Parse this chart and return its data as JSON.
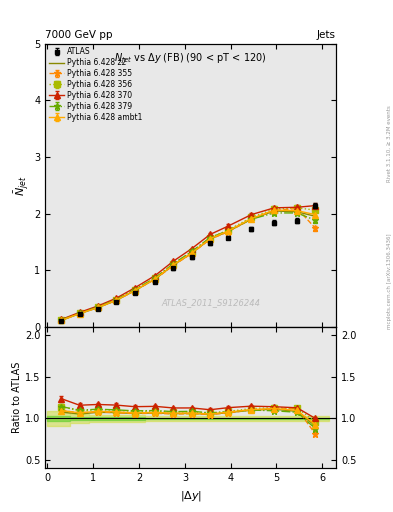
{
  "title_top": "7000 GeV pp",
  "title_right_top": "Jets",
  "plot_title": "N_{jet} vs \\Delta y (FB) (90 < pT < 120)",
  "right_label": "Rivet 3.1.10, ≥ 3.2M events",
  "right_label2": "mcplots.cern.ch [arXiv:1306.3436]",
  "watermark": "ATLAS_2011_S9126244",
  "xlabel": "|\\Delta y|",
  "ylabel": "\\bar{N}_{jet}",
  "ylabel_ratio": "Ratio to ATLAS",
  "xlim": [
    -0.05,
    6.3
  ],
  "ylim_main": [
    0.0,
    5.0
  ],
  "ylim_ratio": [
    0.4,
    2.1
  ],
  "atlas_x": [
    0.3,
    0.7,
    1.1,
    1.5,
    1.9,
    2.35,
    2.75,
    3.15,
    3.55,
    3.95,
    4.45,
    4.95,
    5.45,
    5.85
  ],
  "atlas_y": [
    0.105,
    0.22,
    0.315,
    0.435,
    0.6,
    0.79,
    1.03,
    1.225,
    1.475,
    1.575,
    1.725,
    1.84,
    1.87,
    2.14
  ],
  "atlas_yerr": [
    0.006,
    0.008,
    0.01,
    0.012,
    0.015,
    0.018,
    0.022,
    0.026,
    0.03,
    0.033,
    0.037,
    0.041,
    0.044,
    0.048
  ],
  "series": [
    {
      "label": "Pythia 6.428 355",
      "color": "#ff8800",
      "linestyle": "--",
      "marker": "*",
      "markersize": 5,
      "x": [
        0.3,
        0.7,
        1.1,
        1.5,
        1.9,
        2.35,
        2.75,
        3.15,
        3.55,
        3.95,
        4.45,
        4.95,
        5.45,
        5.85
      ],
      "y": [
        0.115,
        0.235,
        0.34,
        0.465,
        0.635,
        0.84,
        1.085,
        1.295,
        1.545,
        1.68,
        1.9,
        2.05,
        2.09,
        1.74
      ],
      "yerr": [
        0.003,
        0.005,
        0.007,
        0.009,
        0.011,
        0.013,
        0.016,
        0.019,
        0.023,
        0.026,
        0.03,
        0.034,
        0.038,
        0.042
      ]
    },
    {
      "label": "Pythia 6.428 356",
      "color": "#aabb00",
      "linestyle": ":",
      "marker": "s",
      "markersize": 4,
      "x": [
        0.3,
        0.7,
        1.1,
        1.5,
        1.9,
        2.35,
        2.75,
        3.15,
        3.55,
        3.95,
        4.45,
        4.95,
        5.45,
        5.85
      ],
      "y": [
        0.12,
        0.24,
        0.348,
        0.478,
        0.65,
        0.86,
        1.11,
        1.32,
        1.57,
        1.71,
        1.93,
        2.08,
        2.1,
        2.06
      ],
      "yerr": [
        0.003,
        0.005,
        0.007,
        0.009,
        0.011,
        0.013,
        0.016,
        0.019,
        0.023,
        0.026,
        0.03,
        0.034,
        0.038,
        0.042
      ]
    },
    {
      "label": "Pythia 6.428 370",
      "color": "#cc2200",
      "linestyle": "-",
      "marker": "^",
      "markersize": 4,
      "x": [
        0.3,
        0.7,
        1.1,
        1.5,
        1.9,
        2.35,
        2.75,
        3.15,
        3.55,
        3.95,
        4.45,
        4.95,
        5.45,
        5.85
      ],
      "y": [
        0.13,
        0.255,
        0.368,
        0.505,
        0.685,
        0.905,
        1.16,
        1.38,
        1.63,
        1.78,
        1.98,
        2.1,
        2.11,
        2.14
      ],
      "yerr": [
        0.003,
        0.005,
        0.007,
        0.009,
        0.011,
        0.013,
        0.016,
        0.019,
        0.023,
        0.026,
        0.03,
        0.034,
        0.038,
        0.042
      ]
    },
    {
      "label": "Pythia 6.428 379",
      "color": "#66aa00",
      "linestyle": "-.",
      "marker": "*",
      "markersize": 5,
      "x": [
        0.3,
        0.7,
        1.1,
        1.5,
        1.9,
        2.35,
        2.75,
        3.15,
        3.55,
        3.95,
        4.45,
        4.95,
        5.45,
        5.85
      ],
      "y": [
        0.12,
        0.242,
        0.35,
        0.48,
        0.655,
        0.865,
        1.115,
        1.33,
        1.575,
        1.7,
        1.9,
        2.01,
        2.01,
        1.88
      ],
      "yerr": [
        0.003,
        0.005,
        0.007,
        0.009,
        0.011,
        0.013,
        0.016,
        0.019,
        0.023,
        0.026,
        0.03,
        0.034,
        0.038,
        0.042
      ]
    },
    {
      "label": "Pythia 6.428 ambt1",
      "color": "#ffaa00",
      "linestyle": "-",
      "marker": "^",
      "markersize": 4,
      "x": [
        0.3,
        0.7,
        1.1,
        1.5,
        1.9,
        2.35,
        2.75,
        3.15,
        3.55,
        3.95,
        4.45,
        4.95,
        5.45,
        5.85
      ],
      "y": [
        0.115,
        0.235,
        0.342,
        0.47,
        0.64,
        0.848,
        1.095,
        1.305,
        1.555,
        1.695,
        1.91,
        2.06,
        2.05,
        1.98
      ],
      "yerr": [
        0.003,
        0.005,
        0.007,
        0.009,
        0.011,
        0.013,
        0.016,
        0.019,
        0.023,
        0.026,
        0.03,
        0.034,
        0.038,
        0.042
      ]
    },
    {
      "label": "Pythia 6.428 z2",
      "color": "#888800",
      "linestyle": "-",
      "marker": null,
      "markersize": 0,
      "x": [
        0.3,
        0.7,
        1.1,
        1.5,
        1.9,
        2.35,
        2.75,
        3.15,
        3.55,
        3.95,
        4.45,
        4.95,
        5.45,
        5.85
      ],
      "y": [
        0.113,
        0.232,
        0.338,
        0.466,
        0.636,
        0.843,
        1.09,
        1.3,
        1.55,
        1.685,
        1.9,
        2.045,
        2.03,
        1.95
      ],
      "yerr": [
        0.003,
        0.005,
        0.007,
        0.009,
        0.011,
        0.013,
        0.016,
        0.019,
        0.023,
        0.026,
        0.03,
        0.034,
        0.038,
        0.042
      ]
    }
  ],
  "band_inner_color": "#55cc22",
  "band_inner_alpha": 0.55,
  "band_outer_color": "#ccdd22",
  "band_outer_alpha": 0.45,
  "bg_color": "#e8e8e8"
}
